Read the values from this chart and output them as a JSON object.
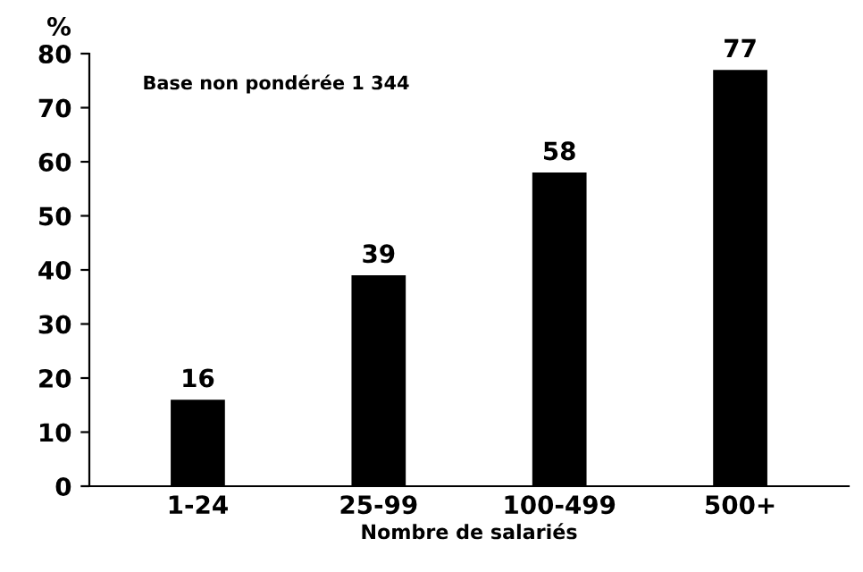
{
  "chart_data": {
    "type": "bar",
    "ylabel": "%",
    "xlabel": "Nombre de salariés",
    "categories": [
      "1-24",
      "25-99",
      "100-499",
      "500+"
    ],
    "values": [
      16,
      39,
      58,
      77
    ],
    "color": "#000000",
    "ylim": [
      0,
      80
    ],
    "yticks": [
      0,
      10,
      20,
      30,
      40,
      50,
      60,
      70,
      80
    ],
    "grid": false,
    "data_labels": true,
    "annotations": [
      "Base non pondérée 1 344"
    ]
  }
}
